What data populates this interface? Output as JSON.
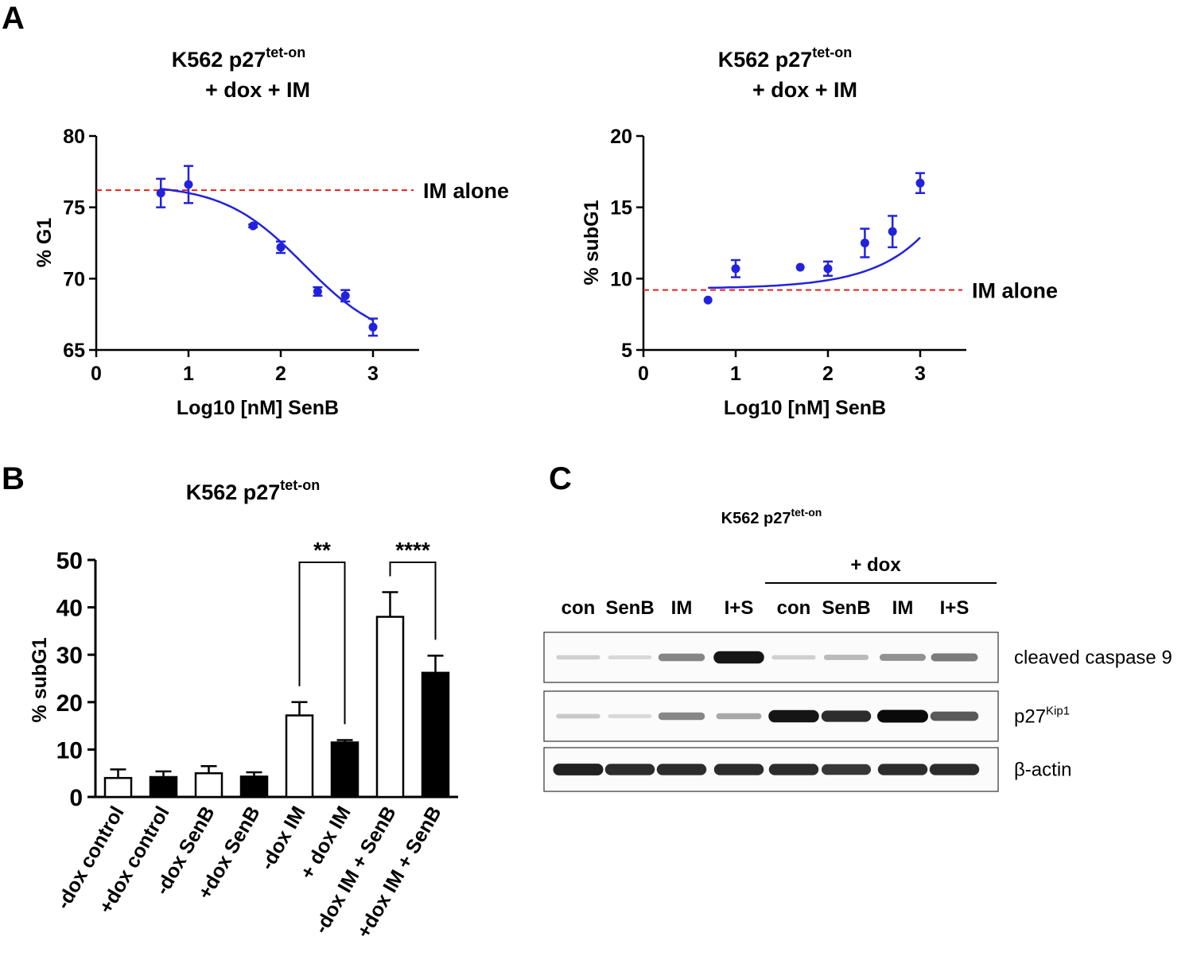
{
  "panels": {
    "a": "A",
    "b": "B",
    "c": "C"
  },
  "chart_data": [
    {
      "id": "A-left",
      "type": "scatter",
      "title": [
        "K562 p27",
        "tet-on",
        "+ dox + IM"
      ],
      "xlabel": "Log10 [nM] SenB",
      "ylabel": "% G1",
      "xlim": [
        0,
        3.5
      ],
      "ylim": [
        65,
        80
      ],
      "xticks": [
        0,
        1,
        2,
        3
      ],
      "yticks": [
        65,
        70,
        75,
        80
      ],
      "xtick_labels": [
        "0",
        "1",
        "2",
        "3"
      ],
      "ytick_labels": [
        "65",
        "70",
        "75",
        "80"
      ],
      "x": [
        0.7,
        1.0,
        1.7,
        2.0,
        2.4,
        2.7,
        3.0
      ],
      "y": [
        76.0,
        76.6,
        73.7,
        72.2,
        69.1,
        68.8,
        66.6
      ],
      "err": [
        1.0,
        1.3,
        0.1,
        0.4,
        0.3,
        0.4,
        0.6
      ],
      "fit": {
        "bottom": 65.4,
        "top": 76.6,
        "logIC50": 2.25,
        "hill": 1.0,
        "x_range": [
          0.7,
          3.0
        ]
      },
      "reference_line": {
        "y": 76.2,
        "label": "IM alone"
      },
      "color": "#2222dd",
      "ref_color": "#ee1c1c"
    },
    {
      "id": "A-right",
      "type": "scatter",
      "title": [
        "K562 p27",
        "tet-on",
        "+ dox + IM"
      ],
      "xlabel": "Log10 [nM] SenB",
      "ylabel": "% subG1",
      "xlim": [
        0,
        3.5
      ],
      "ylim": [
        5,
        20
      ],
      "xticks": [
        0,
        1,
        2,
        3
      ],
      "yticks": [
        5,
        10,
        15,
        20
      ],
      "xtick_labels": [
        "0",
        "1",
        "2",
        "3"
      ],
      "ytick_labels": [
        "5",
        "10",
        "15",
        "20"
      ],
      "x": [
        0.7,
        1.0,
        1.7,
        2.0,
        2.4,
        2.7,
        3.0
      ],
      "y": [
        8.5,
        10.7,
        10.8,
        10.7,
        12.5,
        13.3,
        16.7
      ],
      "err": [
        0,
        0.6,
        0,
        0.5,
        1.0,
        1.1,
        0.7
      ],
      "fit": {
        "base": 9.3,
        "coef": 0.0162,
        "rate": 1.8,
        "x_range": [
          0.7,
          3.0
        ]
      },
      "reference_line": {
        "y": 9.2,
        "label": "IM alone"
      },
      "color": "#2222dd",
      "ref_color": "#ee1c1c"
    },
    {
      "id": "B",
      "type": "bar",
      "title": [
        "K562 p27",
        "tet-on"
      ],
      "ylabel": "% subG1",
      "ylim": [
        0,
        50
      ],
      "yticks": [
        0,
        10,
        20,
        30,
        40,
        50
      ],
      "ytick_labels": [
        "0",
        "10",
        "20",
        "30",
        "40",
        "50"
      ],
      "categories": [
        "-dox control",
        "+dox control",
        "-dox SenB",
        "+dox SenB",
        "-dox IM",
        "+ dox IM",
        "-dox IM + SenB",
        "+dox IM + SenB"
      ],
      "values": [
        4.0,
        4.2,
        5.0,
        4.3,
        17.2,
        11.5,
        38.0,
        26.2
      ],
      "errors": [
        1.8,
        1.2,
        1.5,
        0.9,
        2.8,
        0.5,
        5.2,
        3.6
      ],
      "fills": [
        "white",
        "black",
        "white",
        "black",
        "white",
        "black",
        "white",
        "black"
      ],
      "significance": [
        {
          "from": 4,
          "to": 5,
          "label": "**"
        },
        {
          "from": 6,
          "to": 7,
          "label": "****"
        }
      ]
    }
  ],
  "blot": {
    "title": "K562 p27",
    "title_sup": "tet-on",
    "group_label": "+ dox",
    "lanes": [
      "con",
      "SenB",
      "IM",
      "I+S",
      "con",
      "SenB",
      "IM",
      "I+S"
    ],
    "rows": [
      {
        "label": "cleaved caspase 9",
        "label_sup": "",
        "intensity": [
          0.12,
          0.08,
          0.45,
          0.95,
          0.12,
          0.22,
          0.4,
          0.5
        ]
      },
      {
        "label": "p27",
        "label_sup": "Kip1",
        "intensity": [
          0.15,
          0.08,
          0.45,
          0.3,
          0.95,
          0.85,
          1.0,
          0.65
        ]
      },
      {
        "label": "β-actin",
        "label_sup": "",
        "intensity": [
          0.9,
          0.85,
          0.85,
          0.85,
          0.85,
          0.8,
          0.85,
          0.85
        ]
      }
    ]
  }
}
